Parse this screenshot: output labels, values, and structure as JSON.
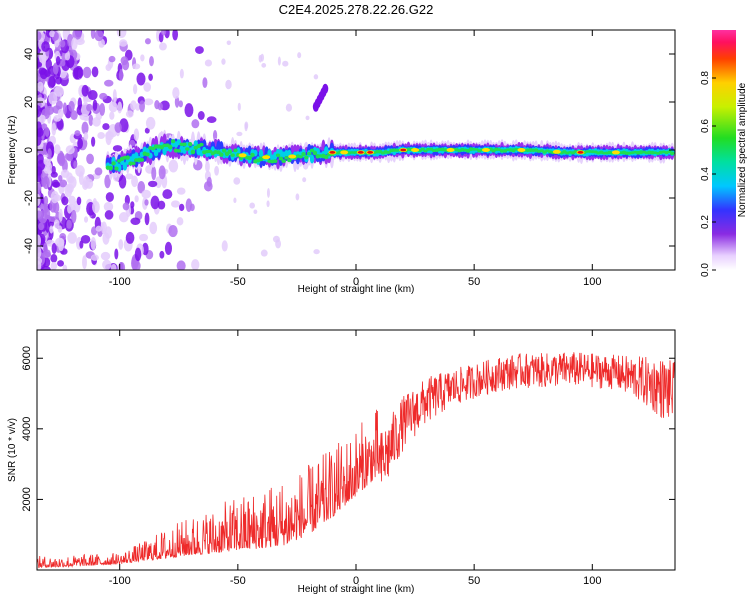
{
  "title": "C2E4.2025.278.22.26.G22",
  "colors": {
    "snr_line": "#ee2a2a",
    "background": "#ffffff",
    "frame": "#000000"
  },
  "chart_data": [
    {
      "type": "heatmap",
      "name": "spectrogram",
      "xlabel": "Height of straight line (km)",
      "ylabel": "Frequency (Hz)",
      "xlim": [
        -135,
        135
      ],
      "ylim": [
        -50,
        50
      ],
      "xticks": [
        -100,
        -50,
        0,
        50,
        100
      ],
      "yticks": [
        -40,
        -20,
        0,
        20,
        40
      ],
      "xtick_labels": [
        "-100",
        "-50",
        "0",
        "50",
        "100"
      ],
      "ytick_labels": [
        "-40",
        "-20",
        "0",
        "20",
        "40"
      ],
      "colorbar": {
        "label": "Normalized spectral amplitude",
        "range": [
          0.0,
          1.0
        ],
        "ticks": [
          0.0,
          0.2,
          0.4,
          0.6,
          0.8
        ],
        "tick_labels": [
          "0.0",
          "0.2",
          "0.4",
          "0.6",
          "0.8"
        ]
      },
      "ridge": {
        "description_points_x_km": [
          -100,
          -90,
          -80,
          -70,
          -60,
          -50,
          -40,
          -30,
          -20,
          -10,
          0,
          10,
          20,
          30,
          50,
          70,
          90,
          110,
          135
        ],
        "frequency_hz": [
          -6,
          -2,
          2,
          1,
          0,
          -2,
          -3,
          -3,
          -2,
          -1,
          -1,
          -1,
          0,
          0,
          0,
          0,
          -1,
          -1,
          -1
        ]
      }
    },
    {
      "type": "line",
      "name": "snr",
      "xlabel": "Height of straight line (km)",
      "ylabel": "SNR (10 * v/v)",
      "xlim": [
        -135,
        135
      ],
      "ylim": [
        0,
        6800
      ],
      "xticks": [
        -100,
        -50,
        0,
        50,
        100
      ],
      "yticks": [
        2000,
        4000,
        6000
      ],
      "xtick_labels": [
        "-100",
        "-50",
        "0",
        "50",
        "100"
      ],
      "ytick_labels": [
        "2000",
        "4000",
        "6000"
      ],
      "envelope": {
        "x": [
          -135,
          -120,
          -100,
          -90,
          -80,
          -70,
          -60,
          -50,
          -40,
          -30,
          -20,
          -10,
          0,
          10,
          20,
          30,
          40,
          50,
          60,
          70,
          80,
          90,
          100,
          110,
          120,
          130,
          135
        ],
        "mean": [
          150,
          180,
          250,
          400,
          550,
          700,
          800,
          950,
          1050,
          1200,
          1500,
          2000,
          2600,
          3200,
          4400,
          5000,
          5300,
          5500,
          5700,
          5800,
          5800,
          5850,
          5800,
          5750,
          5600,
          5400,
          5300
        ],
        "spread": [
          150,
          150,
          150,
          250,
          400,
          500,
          600,
          700,
          800,
          900,
          900,
          900,
          900,
          900,
          700,
          600,
          500,
          450,
          450,
          450,
          450,
          450,
          450,
          450,
          600,
          800,
          800
        ]
      }
    }
  ]
}
